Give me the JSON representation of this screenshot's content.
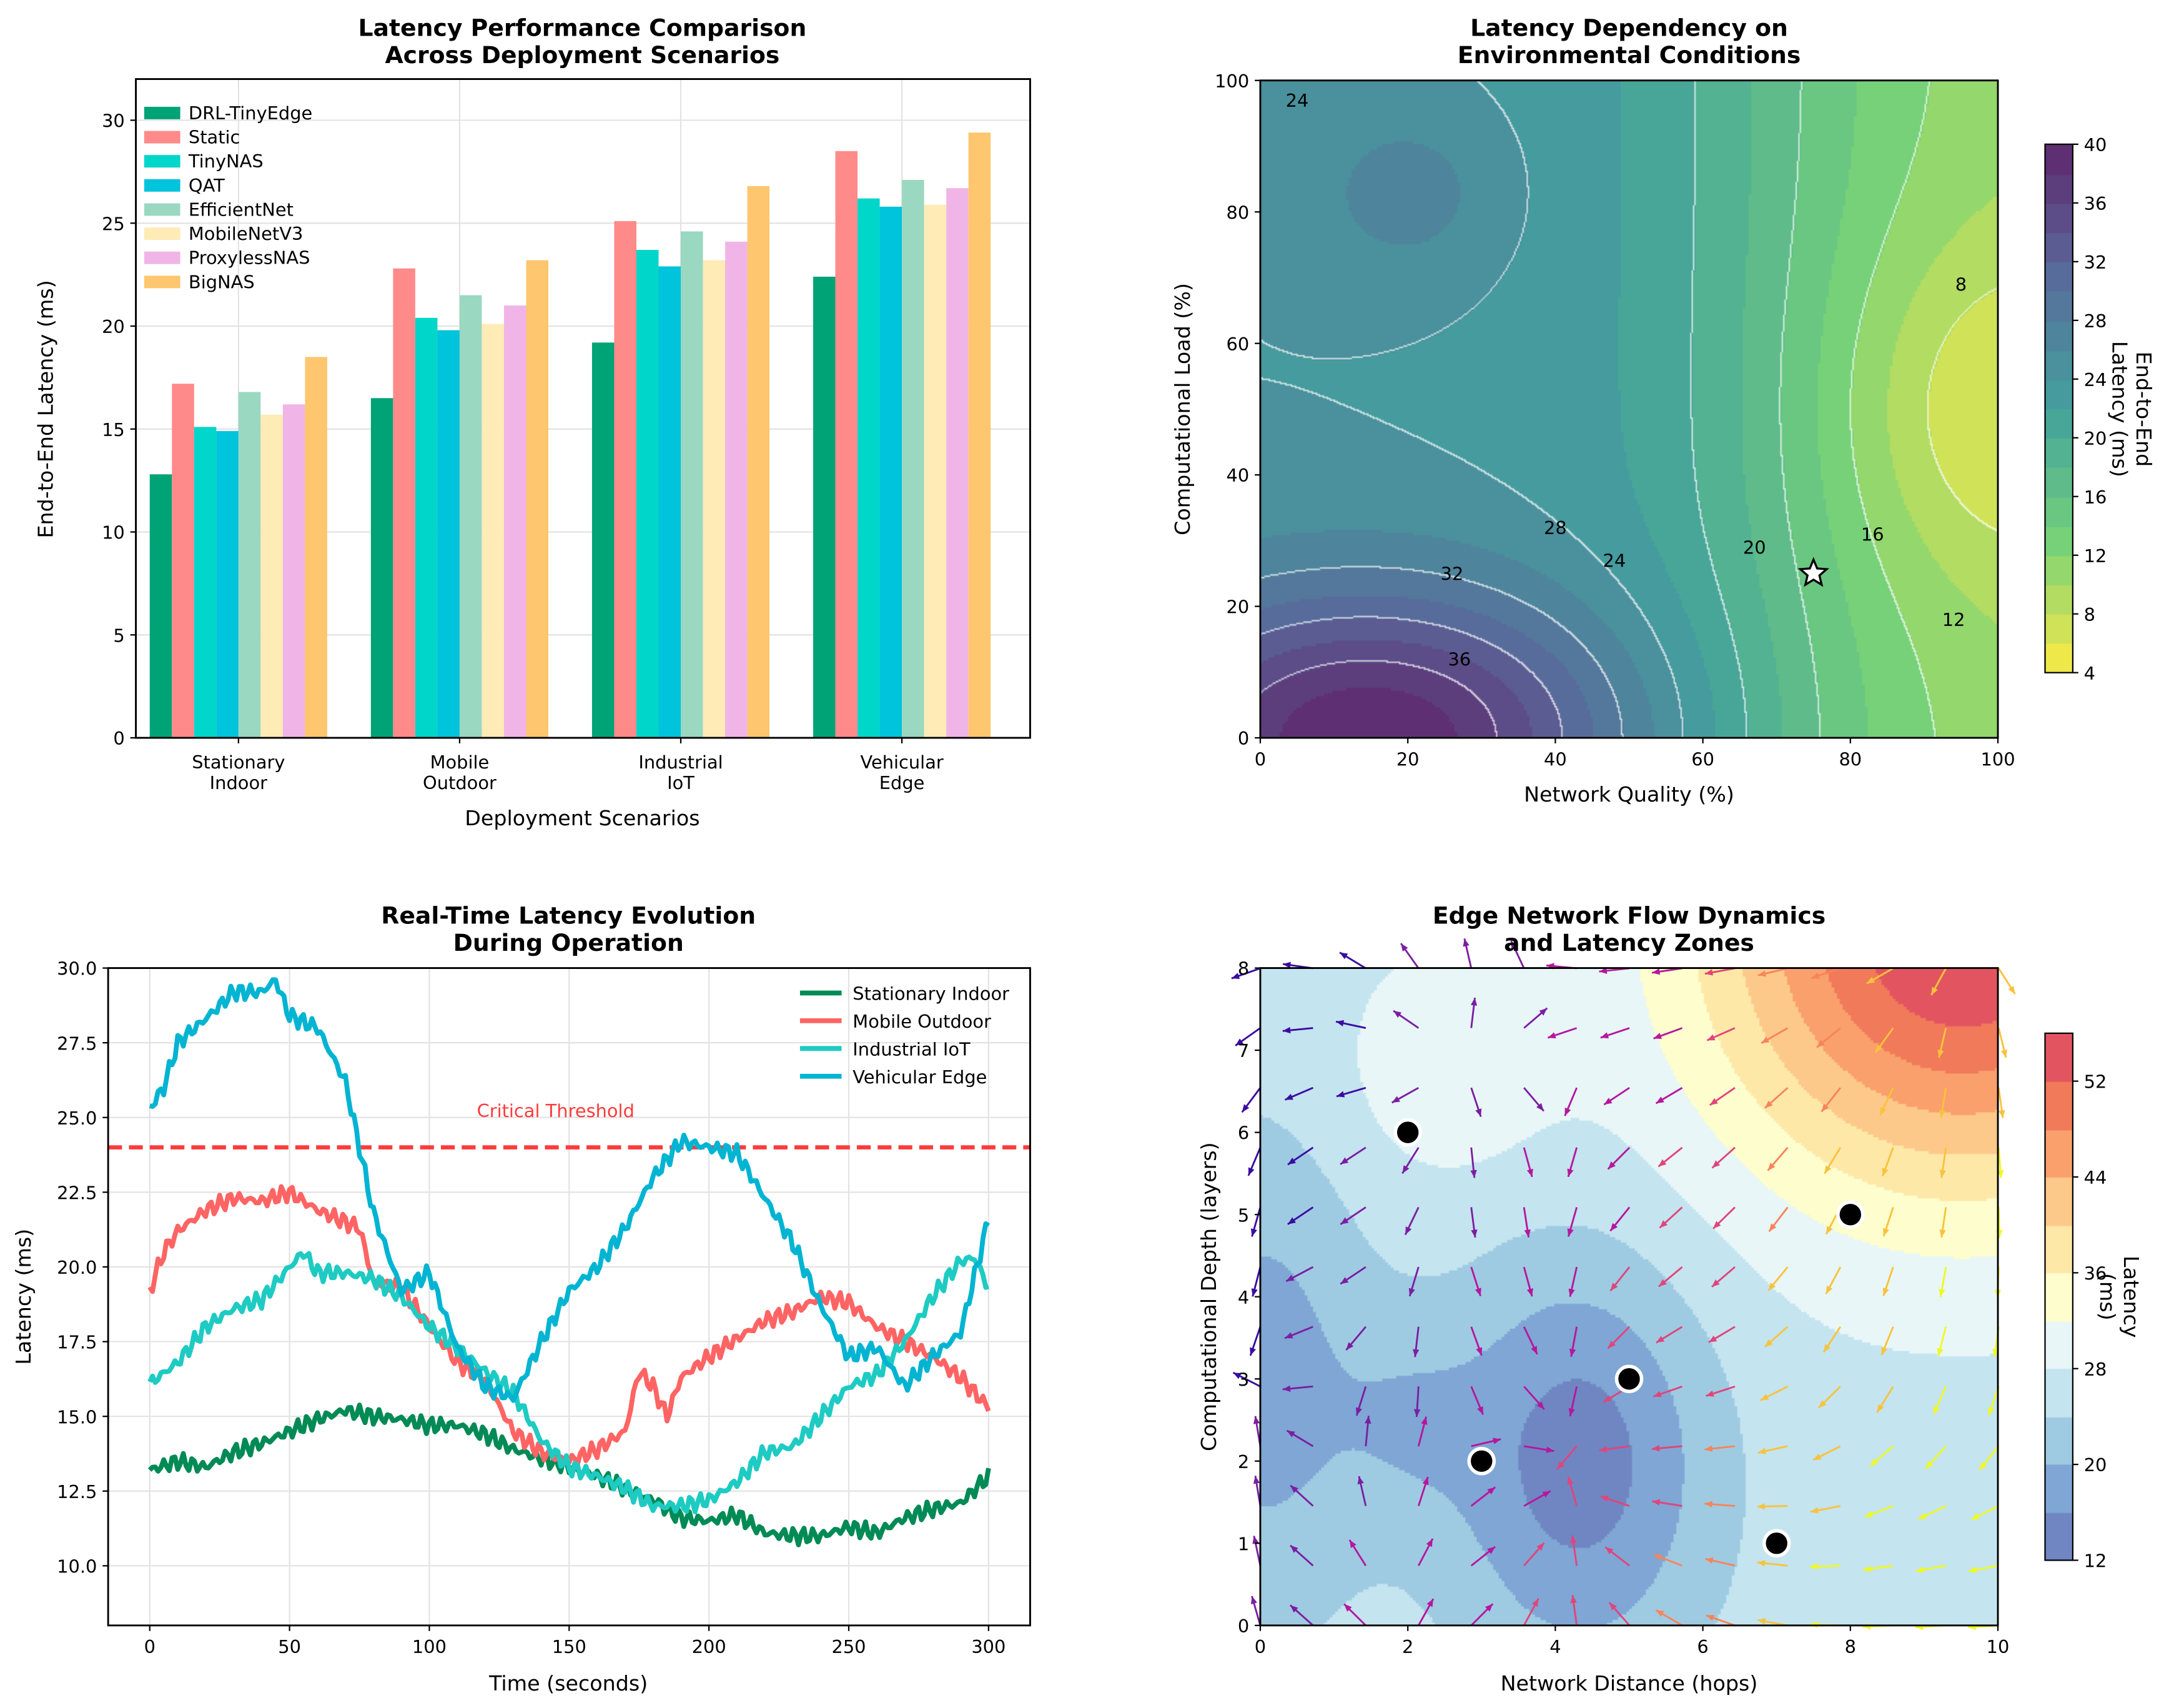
{
  "chart_data": [
    {
      "type": "bar",
      "title": "Latency Performance Comparison\nAcross Deployment Scenarios",
      "xlabel": "Deployment Scenarios",
      "ylabel": "End-to-End Latency (ms)",
      "ylim": [
        0,
        32
      ],
      "yticks": [
        0,
        5,
        10,
        15,
        20,
        25,
        30
      ],
      "categories": [
        "Stationary\nIndoor",
        "Mobile\nOutdoor",
        "Industrial\nIoT",
        "Vehicular\nEdge"
      ],
      "legend_position": "top-left",
      "series": [
        {
          "name": "DRL-TinyEdge",
          "color": "#00a376",
          "values": [
            12.8,
            16.5,
            19.2,
            22.4
          ]
        },
        {
          "name": "Static",
          "color": "#ff8a8a",
          "values": [
            17.2,
            22.8,
            25.1,
            28.5
          ]
        },
        {
          "name": "TinyNAS",
          "color": "#00d6ca",
          "values": [
            15.1,
            20.4,
            23.7,
            26.2
          ]
        },
        {
          "name": "QAT",
          "color": "#00c3dc",
          "values": [
            14.9,
            19.8,
            22.9,
            25.8
          ]
        },
        {
          "name": "EfficientNet",
          "color": "#9ad8c2",
          "values": [
            16.8,
            21.5,
            24.6,
            27.1
          ]
        },
        {
          "name": "MobileNetV3",
          "color": "#feebb6",
          "values": [
            15.7,
            20.1,
            23.2,
            25.9
          ]
        },
        {
          "name": "ProxylessNAS",
          "color": "#f0b5e6",
          "values": [
            16.2,
            21.0,
            24.1,
            26.7
          ]
        },
        {
          "name": "BigNAS",
          "color": "#fec66e",
          "values": [
            18.5,
            23.2,
            26.8,
            29.4
          ]
        }
      ]
    },
    {
      "type": "heatmap",
      "title": "Latency Dependency on\nEnvironmental Conditions",
      "xlabel": "Network Quality (%)",
      "ylabel": "Computational Load (%)",
      "xlim": [
        0,
        100
      ],
      "ylim": [
        0,
        100
      ],
      "xticks": [
        0,
        20,
        40,
        60,
        80,
        100
      ],
      "yticks": [
        0,
        20,
        40,
        60,
        80,
        100
      ],
      "colorbar_label": "End-to-End\nLatency (ms)",
      "colorbar_range": [
        4,
        40
      ],
      "colorbar_ticks": [
        4,
        8,
        12,
        16,
        20,
        24,
        28,
        32,
        36,
        40
      ],
      "contour_labels": [
        "24",
        "28",
        "32",
        "36",
        "24",
        "20",
        "16",
        "12",
        "8"
      ],
      "marker": {
        "type": "star",
        "x": 75,
        "y": 25
      }
    },
    {
      "type": "line",
      "title": "Real-Time Latency Evolution\nDuring Operation",
      "xlabel": "Time (seconds)",
      "ylabel": "Latency (ms)",
      "xlim": [
        -15,
        315
      ],
      "ylim": [
        8.0,
        30.0
      ],
      "xticks": [
        0,
        50,
        100,
        150,
        200,
        250,
        300
      ],
      "yticks": [
        "10.0",
        "12.5",
        "15.0",
        "17.5",
        "20.0",
        "22.5",
        "25.0",
        "27.5",
        "30.0"
      ],
      "legend_position": "top-right",
      "threshold": {
        "value": 24,
        "label": "Critical Threshold",
        "color": "#ff3b3b"
      },
      "series": [
        {
          "name": "Stationary Indoor",
          "color": "#008a55",
          "x": [
            0,
            10,
            20,
            30,
            40,
            50,
            60,
            70,
            80,
            90,
            100,
            110,
            120,
            130,
            140,
            150,
            160,
            170,
            180,
            190,
            200,
            210,
            220,
            230,
            240,
            250,
            260,
            270,
            280,
            290,
            300
          ],
          "y": [
            13.2,
            13.5,
            13.3,
            13.8,
            14.1,
            14.5,
            14.9,
            15.2,
            15.0,
            14.9,
            14.7,
            14.7,
            14.4,
            13.9,
            13.6,
            13.3,
            13.0,
            12.6,
            12.2,
            11.6,
            11.5,
            11.7,
            11.1,
            11.0,
            11.0,
            11.3,
            11.1,
            11.6,
            11.9,
            12.1,
            13.0
          ]
        },
        {
          "name": "Mobile Outdoor",
          "color": "#ff6464",
          "x": [
            0,
            5,
            10,
            20,
            30,
            40,
            50,
            60,
            70,
            75,
            80,
            90,
            100,
            110,
            120,
            130,
            140,
            150,
            160,
            170,
            175,
            180,
            185,
            190,
            200,
            210,
            220,
            230,
            240,
            250,
            260,
            270,
            280,
            290,
            300
          ],
          "y": [
            19.2,
            20.5,
            21.2,
            21.9,
            22.3,
            22.2,
            22.5,
            21.9,
            21.5,
            21.3,
            19.5,
            19.3,
            18.0,
            16.8,
            16.2,
            14.5,
            13.8,
            13.5,
            13.9,
            14.5,
            16.5,
            16.0,
            15.0,
            16.3,
            17.0,
            17.6,
            18.2,
            18.5,
            19.0,
            18.8,
            18.0,
            17.5,
            17.0,
            16.3,
            15.3
          ]
        },
        {
          "name": "Industrial IoT",
          "color": "#1ecbc3",
          "x": [
            0,
            10,
            20,
            30,
            40,
            50,
            55,
            60,
            70,
            80,
            90,
            100,
            110,
            120,
            130,
            140,
            150,
            160,
            170,
            180,
            190,
            200,
            210,
            220,
            230,
            240,
            250,
            260,
            270,
            280,
            290,
            295,
            300
          ],
          "y": [
            16.1,
            16.8,
            18.0,
            18.6,
            18.9,
            20.0,
            20.5,
            19.8,
            19.8,
            19.6,
            19.0,
            18.0,
            17.3,
            16.5,
            15.8,
            14.2,
            13.3,
            13.0,
            12.6,
            12.0,
            12.0,
            12.2,
            12.8,
            13.8,
            14.0,
            15.0,
            16.0,
            16.4,
            17.5,
            19.0,
            20.2,
            20.3,
            19.3
          ]
        },
        {
          "name": "Vehicular Edge",
          "color": "#00b4d2",
          "x": [
            0,
            5,
            10,
            20,
            30,
            40,
            45,
            50,
            60,
            70,
            75,
            80,
            90,
            100,
            110,
            120,
            130,
            140,
            150,
            160,
            170,
            180,
            190,
            200,
            210,
            220,
            230,
            240,
            250,
            260,
            270,
            280,
            290,
            300
          ],
          "y": [
            25.3,
            26.0,
            27.5,
            28.3,
            29.2,
            29.2,
            29.6,
            28.4,
            28.0,
            26.2,
            24.0,
            21.8,
            19.2,
            19.8,
            17.3,
            16.0,
            15.6,
            17.5,
            19.2,
            20.0,
            21.3,
            23.0,
            24.2,
            24.0,
            23.8,
            22.3,
            20.8,
            18.7,
            17.0,
            17.3,
            16.0,
            17.0,
            17.8,
            21.6
          ]
        }
      ]
    },
    {
      "type": "heatmap",
      "title": "Edge Network Flow Dynamics\nand Latency Zones",
      "xlabel": "Network Distance (hops)",
      "ylabel": "Computational Depth (layers)",
      "xlim": [
        0,
        10
      ],
      "ylim": [
        0,
        8
      ],
      "xticks": [
        0,
        2,
        4,
        6,
        8,
        10
      ],
      "yticks": [
        0,
        1,
        2,
        3,
        4,
        5,
        6,
        7,
        8
      ],
      "colorbar_label": "Latency\n(ms)",
      "colorbar_range": [
        12,
        56
      ],
      "colorbar_ticks": [
        12,
        20,
        28,
        36,
        44,
        52
      ],
      "nodes": [
        {
          "x": 2,
          "y": 6
        },
        {
          "x": 8,
          "y": 5
        },
        {
          "x": 5,
          "y": 3
        },
        {
          "x": 3,
          "y": 2
        },
        {
          "x": 7,
          "y": 1
        }
      ]
    }
  ]
}
